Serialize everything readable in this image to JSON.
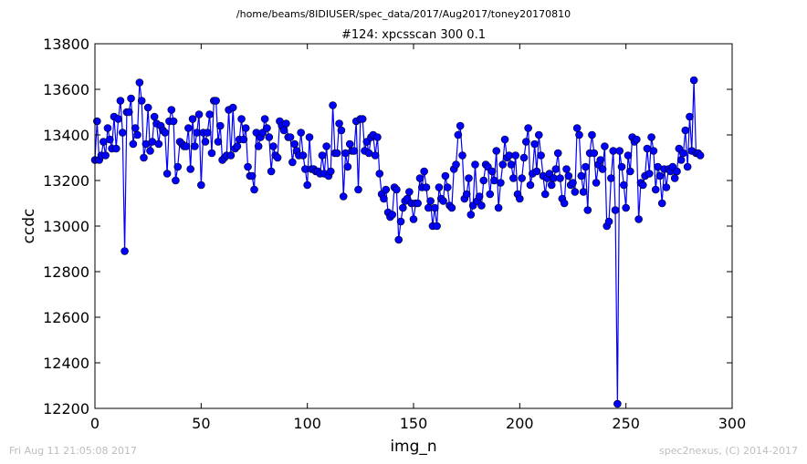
{
  "suptitle": "/home/beams/8IDIUSER/spec_data/2017/Aug2017/toney20170810",
  "footer_left": "Fri Aug 11 21:05:08 2017",
  "footer_right": "spec2nexus, (C) 2014-2017",
  "chart_data": {
    "type": "line",
    "title": "#124: xpcsscan 300 0.1",
    "xlabel": "img_n",
    "ylabel": "ccdc",
    "xlim": [
      0,
      300
    ],
    "ylim": [
      12200,
      13800
    ],
    "xticks": [
      0,
      50,
      100,
      150,
      200,
      250,
      300
    ],
    "yticks": [
      12200,
      12400,
      12600,
      12800,
      13000,
      13200,
      13400,
      13600,
      13800
    ],
    "grid": false,
    "legend": "none",
    "colors": {
      "series": "#0000ff"
    },
    "series": [
      {
        "values": [
          13290,
          13460,
          13290,
          13310,
          13370,
          13310,
          13430,
          13380,
          13340,
          13480,
          13340,
          13470,
          13550,
          13410,
          12890,
          13500,
          13500,
          13560,
          13360,
          13430,
          13400,
          13630,
          13550,
          13300,
          13360,
          13520,
          13330,
          13370,
          13480,
          13450,
          13360,
          13440,
          13420,
          13410,
          13230,
          13460,
          13510,
          13460,
          13200,
          13260,
          13370,
          13360,
          13350,
          13350,
          13430,
          13250,
          13470,
          13350,
          13410,
          13490,
          13180,
          13410,
          13370,
          13410,
          13490,
          13320,
          13550,
          13550,
          13370,
          13440,
          13290,
          13300,
          13310,
          13510,
          13310,
          13520,
          13340,
          13350,
          13380,
          13470,
          13380,
          13430,
          13260,
          13220,
          13220,
          13160,
          13410,
          13350,
          13390,
          13410,
          13470,
          13430,
          13390,
          13240,
          13350,
          13310,
          13300,
          13460,
          13440,
          13420,
          13450,
          13390,
          13390,
          13280,
          13360,
          13330,
          13310,
          13410,
          13310,
          13250,
          13180,
          13390,
          13250,
          13250,
          13240,
          13240,
          13230,
          13310,
          13230,
          13350,
          13220,
          13240,
          13530,
          13320,
          13320,
          13450,
          13420,
          13130,
          13320,
          13260,
          13360,
          13330,
          13330,
          13460,
          13160,
          13470,
          13470,
          13330,
          13370,
          13320,
          13390,
          13400,
          13310,
          13390,
          13230,
          13140,
          13120,
          13160,
          13060,
          13040,
          13050,
          13170,
          13160,
          12940,
          13020,
          13080,
          13110,
          13120,
          13150,
          13100,
          13030,
          13100,
          13100,
          13210,
          13170,
          13240,
          13170,
          13080,
          13110,
          13000,
          13080,
          13000,
          13170,
          13120,
          13110,
          13220,
          13170,
          13090,
          13080,
          13250,
          13270,
          13400,
          13440,
          13310,
          13120,
          13140,
          13210,
          13050,
          13090,
          13270,
          13110,
          13130,
          13090,
          13200,
          13270,
          13260,
          13140,
          13240,
          13200,
          13330,
          13080,
          13190,
          13270,
          13380,
          13300,
          13310,
          13270,
          13210,
          13310,
          13140,
          13120,
          13210,
          13300,
          13370,
          13430,
          13180,
          13230,
          13360,
          13240,
          13400,
          13310,
          13220,
          13140,
          13210,
          13230,
          13180,
          13210,
          13250,
          13320,
          13210,
          13120,
          13100,
          13250,
          13220,
          13180,
          13190,
          13150,
          13430,
          13400,
          13220,
          13150,
          13260,
          13070,
          13320,
          13400,
          13320,
          13190,
          13270,
          13290,
          13250,
          13350,
          13000,
          13020,
          13210,
          13330,
          13070,
          12220,
          13330,
          13260,
          13180,
          13080,
          13310,
          13240,
          13390,
          13370,
          13380,
          13030,
          13190,
          13180,
          13220,
          13340,
          13230,
          13390,
          13330,
          13160,
          13260,
          13220,
          13100,
          13250,
          13170,
          13250,
          13240,
          13260,
          13210,
          13240,
          13340,
          13290,
          13320,
          13420,
          13260,
          13480,
          13330,
          13640,
          13320,
          13320,
          13310
        ]
      }
    ]
  }
}
